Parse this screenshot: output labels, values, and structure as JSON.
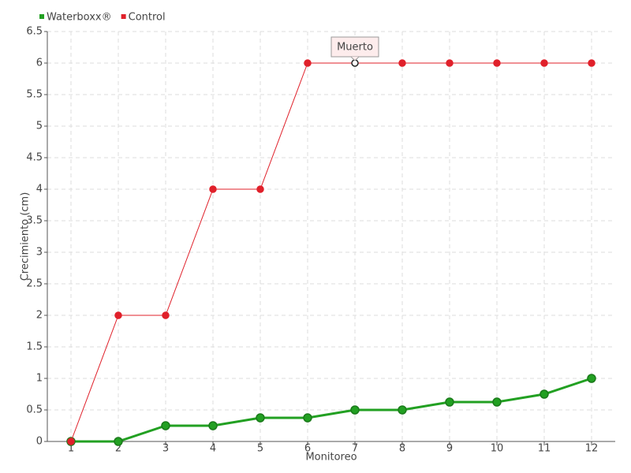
{
  "chart_data": {
    "type": "line",
    "x": [
      1,
      2,
      3,
      4,
      5,
      6,
      7,
      8,
      9,
      10,
      11,
      12
    ],
    "series": [
      {
        "name": "Waterboxx®",
        "color": "#22a022",
        "values": [
          0,
          0,
          0.25,
          0.25,
          0.375,
          0.375,
          0.5,
          0.5,
          0.625,
          0.625,
          0.75,
          1
        ]
      },
      {
        "name": "Control",
        "color": "#e0202a",
        "values": [
          0,
          2,
          2,
          4,
          4,
          6,
          6,
          6,
          6,
          6,
          6,
          6
        ]
      }
    ],
    "xlabel": "Monitoreo",
    "ylabel": "Crecimiento (cm)",
    "xlim": [
      0.5,
      12.5
    ],
    "xticks": [
      1,
      2,
      3,
      4,
      5,
      6,
      7,
      8,
      9,
      10,
      11,
      12
    ],
    "ylim": [
      0,
      6.5
    ],
    "yticks": [
      0,
      0.5,
      1,
      1.5,
      2,
      2.5,
      3,
      3.5,
      4,
      4.5,
      5,
      5.5,
      6,
      6.5
    ],
    "grid": true,
    "legend": "top-left",
    "annotations": [
      {
        "text": "Muerto",
        "x": 7,
        "y": 6
      }
    ]
  }
}
